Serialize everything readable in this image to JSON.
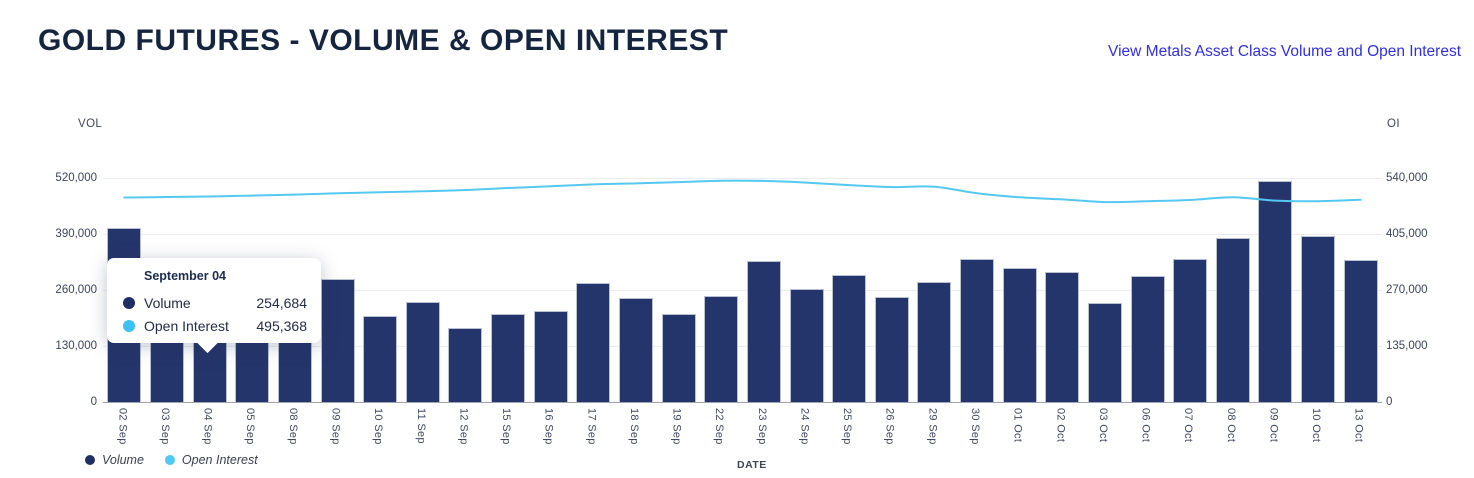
{
  "header": {
    "title": "GOLD FUTURES - VOLUME & OPEN INTEREST",
    "link_label": "View Metals Asset Class Volume and Open Interest"
  },
  "chart_data": {
    "type": "bar",
    "subtype": "dual-axis bar + line combo",
    "categories": [
      "02 Sep",
      "03 Sep",
      "04 Sep",
      "05 Sep",
      "08 Sep",
      "09 Sep",
      "10 Sep",
      "11 Sep",
      "12 Sep",
      "15 Sep",
      "16 Sep",
      "17 Sep",
      "18 Sep",
      "19 Sep",
      "22 Sep",
      "23 Sep",
      "24 Sep",
      "25 Sep",
      "26 Sep",
      "29 Sep",
      "30 Sep",
      "01 Oct",
      "02 Oct",
      "03 Oct",
      "06 Oct",
      "07 Oct",
      "08 Oct",
      "09 Oct",
      "10 Oct",
      "13 Oct"
    ],
    "series": [
      {
        "name": "Volume",
        "type": "bar",
        "axis": "left",
        "color": "#24356b",
        "values": [
          405000,
          248000,
          254684,
          252000,
          240000,
          285000,
          200000,
          233000,
          172000,
          205000,
          211000,
          276000,
          242000,
          204000,
          247000,
          328000,
          262000,
          296000,
          244000,
          279000,
          332000,
          311000,
          301000,
          229000,
          292000,
          331000,
          380000,
          513000,
          386000,
          330000
        ]
      },
      {
        "name": "Open Interest",
        "type": "line",
        "axis": "right",
        "color": "#55c8f2",
        "values": [
          493000,
          494200,
          495368,
          497500,
          500000,
          503000,
          505500,
          508000,
          511000,
          516000,
          520000,
          524500,
          527000,
          530000,
          533500,
          533000,
          529000,
          523000,
          518000,
          519000,
          503000,
          493500,
          488500,
          482000,
          484000,
          487000,
          493500,
          485500,
          484000,
          487500
        ]
      }
    ],
    "left_axis": {
      "title": "VOL",
      "min": 0,
      "max": 520000,
      "tick_interval": 130000,
      "tick_labels": [
        "0",
        "130,000",
        "260,000",
        "390,000",
        "520,000"
      ]
    },
    "right_axis": {
      "title": "OI",
      "min": 0,
      "max": 540000,
      "tick_interval": 135000,
      "tick_labels": [
        "0",
        "135,000",
        "270,000",
        "405,000",
        "540,000"
      ]
    },
    "xlabel": "DATE",
    "grid": "horizontal",
    "legend_position": "bottom-left"
  },
  "tooltip": {
    "title": "September 04",
    "rows": [
      {
        "label": "Volume",
        "value": "254,684",
        "color": "#1f2f63"
      },
      {
        "label": "Open Interest",
        "value": "495,368",
        "color": "#3cc1f5"
      }
    ]
  },
  "legend": {
    "items": [
      {
        "label": "Volume",
        "color": "#1f2f63"
      },
      {
        "label": "Open Interest",
        "color": "#4fc8f4"
      }
    ]
  }
}
